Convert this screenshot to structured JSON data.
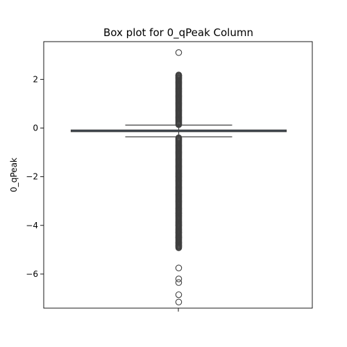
{
  "chart_data": {
    "type": "box",
    "title": "Box plot for 0_qPeak Column",
    "xlabel": "",
    "ylabel": "0_qPeak",
    "ylim": [
      -7.4,
      3.55
    ],
    "yticks": [
      2,
      0,
      -2,
      -4,
      -6
    ],
    "ytick_labels": [
      "2",
      "0",
      "−2",
      "−4",
      "−6"
    ],
    "grid": false,
    "box": {
      "q1": -0.15,
      "median": -0.12,
      "q3": -0.08,
      "whisker_low": -0.36,
      "whisker_high": 0.12
    },
    "outliers_dense_ranges": [
      [
        0.14,
        2.2
      ],
      [
        -4.9,
        -0.38
      ]
    ],
    "outliers_sparse": [
      3.1,
      2.15,
      2.05,
      -3.5,
      -4.0,
      -4.3,
      -4.5,
      -4.7,
      -4.85,
      -4.92,
      -5.75,
      -6.2,
      -6.35,
      -6.85,
      -7.15
    ],
    "colors": {
      "box_fill": "#3b75af",
      "line": "#3f3f3f",
      "axes": "#000000"
    }
  }
}
